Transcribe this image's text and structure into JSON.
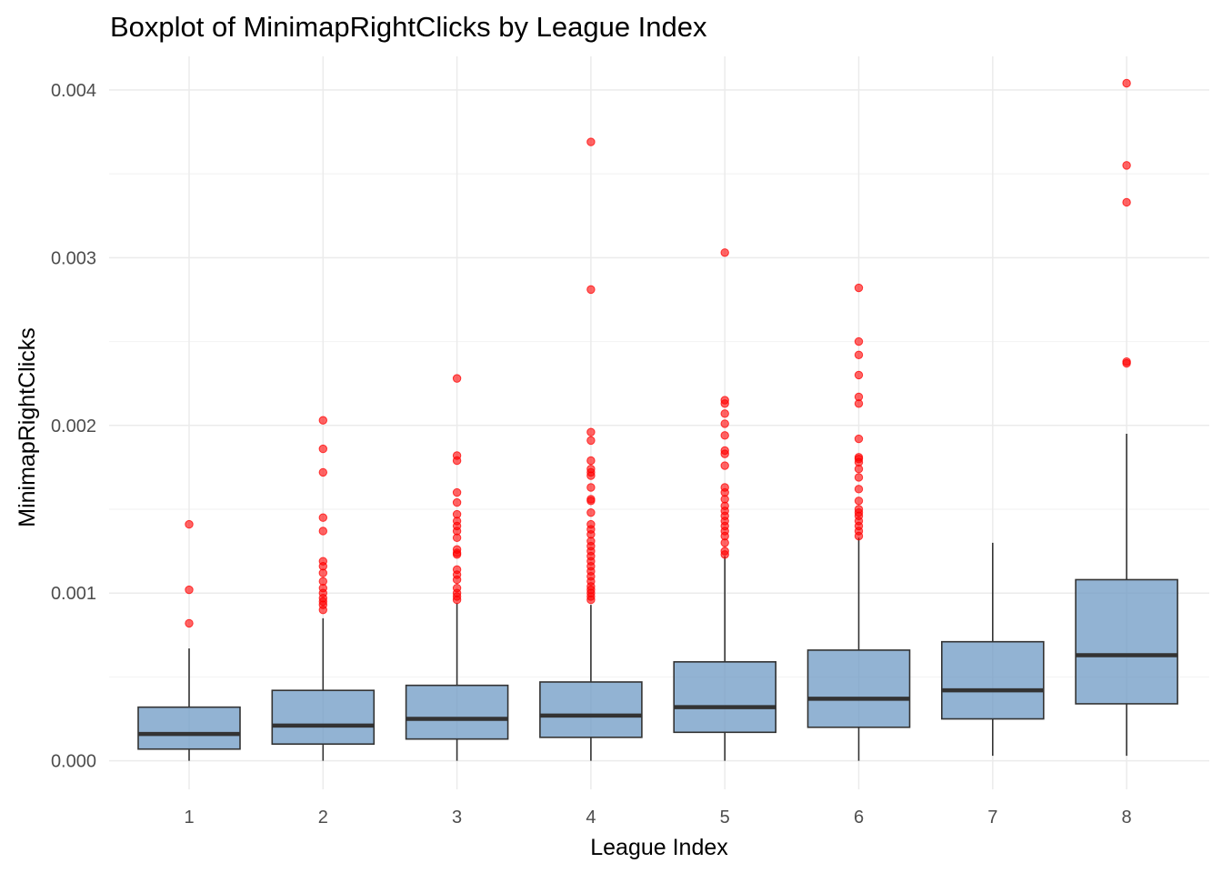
{
  "chart_data": {
    "type": "boxplot",
    "title": "Boxplot of MinimapRightClicks by League Index",
    "xlabel": "League Index",
    "ylabel": "MinimapRightClicks",
    "categories": [
      "1",
      "2",
      "3",
      "4",
      "5",
      "6",
      "7",
      "8"
    ],
    "ylim": [
      -0.00017,
      0.0042
    ],
    "yticks": [
      0.0,
      0.001,
      0.002,
      0.003,
      0.004
    ],
    "ytick_labels": [
      "0.000",
      "0.001",
      "0.002",
      "0.003",
      "0.004"
    ],
    "grid": true,
    "colors": {
      "box_fill": "#6e9ac4",
      "box_fill_opacity": 0.75,
      "box_stroke": "#333333",
      "median": "#333333",
      "outlier": "#ff0000",
      "grid_major": "#ebebeb",
      "grid_minor": "#f4f4f4"
    },
    "boxes": [
      {
        "category": "1",
        "whisker_low": 0.0,
        "q1": 7e-05,
        "median": 0.00016,
        "q3": 0.00032,
        "whisker_high": 0.00067,
        "outliers": [
          0.00082,
          0.00102,
          0.00141
        ]
      },
      {
        "category": "2",
        "whisker_low": 0.0,
        "q1": 0.0001,
        "median": 0.00021,
        "q3": 0.00042,
        "whisker_high": 0.00085,
        "outliers": [
          0.0009,
          0.00093,
          0.00095,
          0.00097,
          0.001,
          0.00103,
          0.00107,
          0.00112,
          0.00116,
          0.00119,
          0.00137,
          0.00145,
          0.00172,
          0.00186,
          0.00203
        ]
      },
      {
        "category": "3",
        "whisker_low": 0.0,
        "q1": 0.00013,
        "median": 0.00025,
        "q3": 0.00045,
        "whisker_high": 0.00094,
        "outliers": [
          0.00096,
          0.00098,
          0.001,
          0.00103,
          0.00108,
          0.00111,
          0.00114,
          0.00123,
          0.00124,
          0.00126,
          0.00133,
          0.00137,
          0.0014,
          0.00143,
          0.00147,
          0.00154,
          0.0016,
          0.00179,
          0.00182,
          0.00228
        ]
      },
      {
        "category": "4",
        "whisker_low": 0.0,
        "q1": 0.00014,
        "median": 0.00027,
        "q3": 0.00047,
        "whisker_high": 0.00093,
        "outliers": [
          0.00096,
          0.00098,
          0.001,
          0.00102,
          0.00104,
          0.00107,
          0.0011,
          0.00113,
          0.00116,
          0.00119,
          0.00122,
          0.00125,
          0.00128,
          0.00131,
          0.00135,
          0.00138,
          0.00141,
          0.00148,
          0.00155,
          0.00156,
          0.00163,
          0.0017,
          0.00172,
          0.00174,
          0.00179,
          0.00191,
          0.00196,
          0.00281,
          0.00369
        ]
      },
      {
        "category": "5",
        "whisker_low": 0.0,
        "q1": 0.00017,
        "median": 0.00032,
        "q3": 0.00059,
        "whisker_high": 0.00122,
        "outliers": [
          0.00123,
          0.00125,
          0.0013,
          0.00134,
          0.00137,
          0.0014,
          0.00143,
          0.00146,
          0.00149,
          0.00152,
          0.00156,
          0.0016,
          0.00163,
          0.00176,
          0.00183,
          0.00185,
          0.00194,
          0.00201,
          0.00207,
          0.00213,
          0.00215,
          0.00303
        ]
      },
      {
        "category": "6",
        "whisker_low": 0.0,
        "q1": 0.0002,
        "median": 0.00037,
        "q3": 0.00066,
        "whisker_high": 0.00133,
        "outliers": [
          0.00134,
          0.00137,
          0.0014,
          0.00143,
          0.00146,
          0.00148,
          0.0015,
          0.00155,
          0.00162,
          0.00169,
          0.00174,
          0.00178,
          0.0018,
          0.00181,
          0.00192,
          0.00213,
          0.00217,
          0.0023,
          0.00242,
          0.0025,
          0.00282
        ]
      },
      {
        "category": "7",
        "whisker_low": 3e-05,
        "q1": 0.00025,
        "median": 0.00042,
        "q3": 0.00071,
        "whisker_high": 0.0013,
        "outliers": []
      },
      {
        "category": "8",
        "whisker_low": 3e-05,
        "q1": 0.00034,
        "median": 0.00063,
        "q3": 0.00108,
        "whisker_high": 0.00195,
        "outliers": [
          0.00237,
          0.00238,
          0.00333,
          0.00355,
          0.00404
        ]
      }
    ]
  }
}
